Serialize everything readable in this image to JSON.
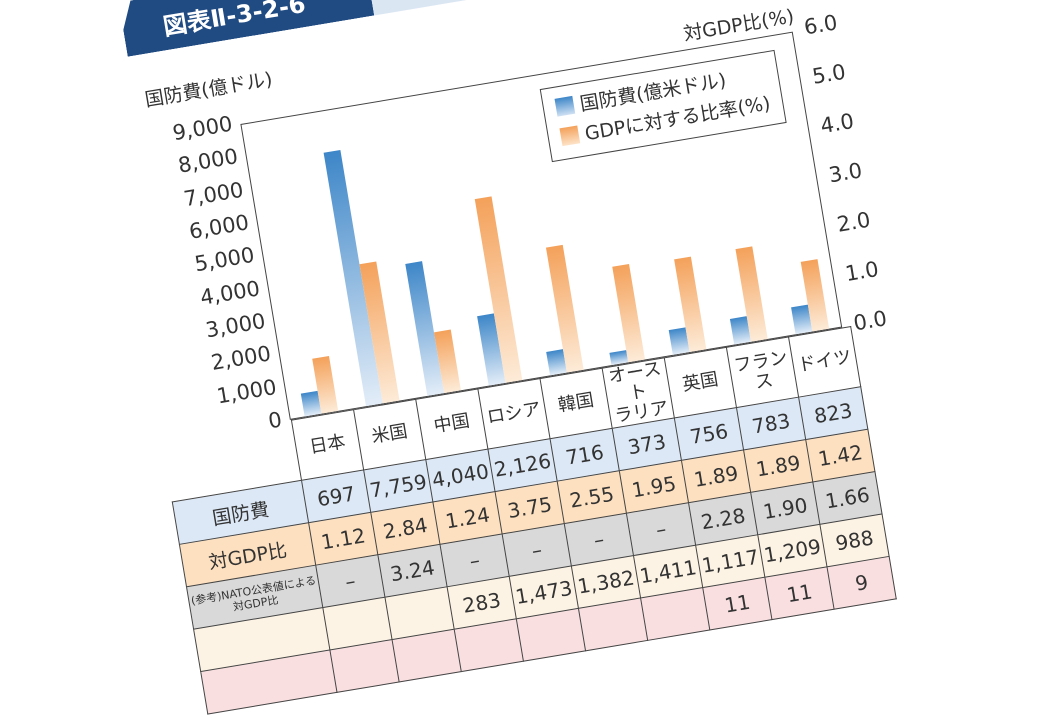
{
  "figure_label": "図表Ⅱ-3-2-6",
  "chart_data": {
    "type": "bar",
    "left_axis_label": "国防費(億ドル)",
    "right_axis_label": "対GDP比(%)",
    "left_ylim": [
      0,
      9000
    ],
    "right_ylim": [
      0,
      6
    ],
    "left_ticks": [
      "0",
      "1,000",
      "2,000",
      "3,000",
      "4,000",
      "5,000",
      "6,000",
      "7,000",
      "8,000",
      "9,000"
    ],
    "right_ticks": [
      "0.0",
      "1.0",
      "2.0",
      "3.0",
      "4.0",
      "5.0",
      "6.0"
    ],
    "categories": [
      "日本",
      "米国",
      "中国",
      "ロシア",
      "韓国",
      "オースト\nラリア",
      "英国",
      "フランス",
      "ドイツ"
    ],
    "series": [
      {
        "name": "国防費(億米ドル)",
        "axis": "left",
        "color": "#3d86c8",
        "values": [
          697,
          7759,
          4040,
          2126,
          716,
          373,
          756,
          783,
          823
        ]
      },
      {
        "name": "GDPに対する比率(%)",
        "axis": "right",
        "color": "#f4a15a",
        "values": [
          1.12,
          2.84,
          1.24,
          3.75,
          2.55,
          1.95,
          1.89,
          1.89,
          1.42
        ]
      }
    ],
    "legend_position": "top-right",
    "grid": false
  },
  "table": {
    "rows": [
      {
        "label": "国防費",
        "cells": [
          "697",
          "7,759",
          "4,040",
          "2,126",
          "716",
          "373",
          "756",
          "783",
          "823"
        ]
      },
      {
        "label": "対GDP比",
        "cells": [
          "1.12",
          "2.84",
          "1.24",
          "3.75",
          "2.55",
          "1.95",
          "1.89",
          "1.89",
          "1.42"
        ]
      },
      {
        "label": "(参考)NATO公表値による対GDP比",
        "cells": [
          "–",
          "3.24",
          "–",
          "–",
          "–",
          "–",
          "2.28",
          "1.90",
          "1.66"
        ]
      },
      {
        "label": "",
        "cells": [
          "",
          "",
          "283",
          "1,473",
          "1,382",
          "1,411",
          "1,117",
          "1,209",
          "988"
        ]
      },
      {
        "label": "",
        "cells": [
          "",
          "",
          "",
          "",
          "",
          "",
          "11",
          "11",
          "9"
        ]
      }
    ]
  }
}
